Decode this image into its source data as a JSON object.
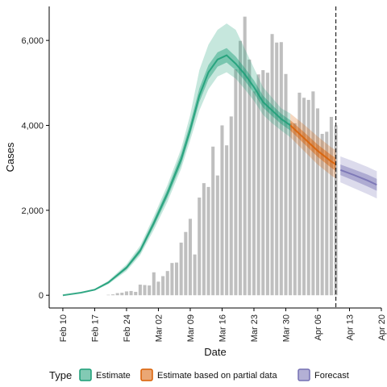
{
  "chart_data": {
    "type": "bar",
    "xlabel": "Date",
    "ylabel": "Cases",
    "x_ticks": [
      "Feb 10",
      "Feb 17",
      "Feb 24",
      "Mar 02",
      "Mar 09",
      "Mar 16",
      "Mar 23",
      "Mar 30",
      "Apr 06",
      "Apr 13",
      "Apr 20"
    ],
    "y_ticks": [
      {
        "value": 0,
        "label": "0"
      },
      {
        "value": 2000,
        "label": "2,000"
      },
      {
        "value": 4000,
        "label": "4,000"
      },
      {
        "value": 6000,
        "label": "6,000"
      }
    ],
    "xlim": [
      "2020-02-07",
      "2020-04-20"
    ],
    "ylim": [
      -300,
      6800
    ],
    "grid": false,
    "vline_date": "2020-04-10",
    "legend": {
      "position": "bottom",
      "title": "Type",
      "entries": [
        {
          "label": "Estimate",
          "color": "#1b9e77"
        },
        {
          "label": "Estimate based on partial data",
          "color": "#d95f02"
        },
        {
          "label": "Forecast",
          "color": "#7570b3"
        }
      ]
    },
    "colors": {
      "bars": "#bfbfbf",
      "estimate": "#1b9e77",
      "partial": "#d95f02",
      "forecast": "#7570b3"
    },
    "bars": [
      {
        "date": "2020-02-20",
        "value": 10
      },
      {
        "date": "2020-02-21",
        "value": 20
      },
      {
        "date": "2020-02-22",
        "value": 50
      },
      {
        "date": "2020-02-23",
        "value": 60
      },
      {
        "date": "2020-02-24",
        "value": 90
      },
      {
        "date": "2020-02-25",
        "value": 100
      },
      {
        "date": "2020-02-26",
        "value": 80
      },
      {
        "date": "2020-02-27",
        "value": 250
      },
      {
        "date": "2020-02-28",
        "value": 240
      },
      {
        "date": "2020-02-29",
        "value": 230
      },
      {
        "date": "2020-03-01",
        "value": 540
      },
      {
        "date": "2020-03-02",
        "value": 320
      },
      {
        "date": "2020-03-03",
        "value": 450
      },
      {
        "date": "2020-03-04",
        "value": 570
      },
      {
        "date": "2020-03-05",
        "value": 760
      },
      {
        "date": "2020-03-06",
        "value": 770
      },
      {
        "date": "2020-03-07",
        "value": 1240
      },
      {
        "date": "2020-03-08",
        "value": 1490
      },
      {
        "date": "2020-03-09",
        "value": 1800
      },
      {
        "date": "2020-03-10",
        "value": 960
      },
      {
        "date": "2020-03-11",
        "value": 2300
      },
      {
        "date": "2020-03-12",
        "value": 2640
      },
      {
        "date": "2020-03-13",
        "value": 2550
      },
      {
        "date": "2020-03-14",
        "value": 3500
      },
      {
        "date": "2020-03-15",
        "value": 2820
      },
      {
        "date": "2020-03-16",
        "value": 4000
      },
      {
        "date": "2020-03-17",
        "value": 3530
      },
      {
        "date": "2020-03-18",
        "value": 4210
      },
      {
        "date": "2020-03-19",
        "value": 5320
      },
      {
        "date": "2020-03-20",
        "value": 5990
      },
      {
        "date": "2020-03-21",
        "value": 6560
      },
      {
        "date": "2020-03-22",
        "value": 5550
      },
      {
        "date": "2020-03-23",
        "value": 4800
      },
      {
        "date": "2020-03-24",
        "value": 5200
      },
      {
        "date": "2020-03-25",
        "value": 5300
      },
      {
        "date": "2020-03-26",
        "value": 5240
      },
      {
        "date": "2020-03-27",
        "value": 6150
      },
      {
        "date": "2020-03-28",
        "value": 5950
      },
      {
        "date": "2020-03-29",
        "value": 5960
      },
      {
        "date": "2020-03-30",
        "value": 5210
      },
      {
        "date": "2020-03-31",
        "value": 4050
      },
      {
        "date": "2020-04-01",
        "value": 4050
      },
      {
        "date": "2020-04-02",
        "value": 4770
      },
      {
        "date": "2020-04-03",
        "value": 4650
      },
      {
        "date": "2020-04-04",
        "value": 4600
      },
      {
        "date": "2020-04-05",
        "value": 4800
      },
      {
        "date": "2020-04-06",
        "value": 4400
      },
      {
        "date": "2020-04-07",
        "value": 3800
      },
      {
        "date": "2020-04-08",
        "value": 3850
      },
      {
        "date": "2020-04-09",
        "value": 4200
      },
      {
        "date": "2020-04-10",
        "value": 4000
      }
    ],
    "series": [
      {
        "name": "Estimate",
        "color": "#1b9e77",
        "points": [
          {
            "date": "2020-02-10",
            "mid": 0,
            "lo50": 0,
            "hi50": 0,
            "lo90": 0,
            "hi90": 0
          },
          {
            "date": "2020-02-14",
            "mid": 60,
            "lo50": 55,
            "hi50": 65,
            "lo90": 50,
            "hi90": 70
          },
          {
            "date": "2020-02-17",
            "mid": 130,
            "lo50": 120,
            "hi50": 140,
            "lo90": 110,
            "hi90": 150
          },
          {
            "date": "2020-02-20",
            "mid": 300,
            "lo50": 280,
            "hi50": 320,
            "lo90": 260,
            "hi90": 340
          },
          {
            "date": "2020-02-24",
            "mid": 650,
            "lo50": 610,
            "hi50": 690,
            "lo90": 570,
            "hi90": 730
          },
          {
            "date": "2020-02-27",
            "mid": 1050,
            "lo50": 990,
            "hi50": 1110,
            "lo90": 940,
            "hi90": 1170
          },
          {
            "date": "2020-03-01",
            "mid": 1700,
            "lo50": 1620,
            "hi50": 1780,
            "lo90": 1540,
            "hi90": 1860
          },
          {
            "date": "2020-03-04",
            "mid": 2400,
            "lo50": 2300,
            "hi50": 2500,
            "lo90": 2200,
            "hi90": 2600
          },
          {
            "date": "2020-03-07",
            "mid": 3200,
            "lo50": 3080,
            "hi50": 3330,
            "lo90": 2980,
            "hi90": 3450
          },
          {
            "date": "2020-03-09",
            "mid": 3900,
            "lo50": 3780,
            "hi50": 4050,
            "lo90": 3650,
            "hi90": 4250
          },
          {
            "date": "2020-03-11",
            "mid": 4700,
            "lo50": 4550,
            "hi50": 4870,
            "lo90": 4350,
            "hi90": 5300
          },
          {
            "date": "2020-03-13",
            "mid": 5250,
            "lo50": 5080,
            "hi50": 5420,
            "lo90": 4850,
            "hi90": 5900
          },
          {
            "date": "2020-03-15",
            "mid": 5550,
            "lo50": 5380,
            "hi50": 5720,
            "lo90": 5150,
            "hi90": 6250
          },
          {
            "date": "2020-03-17",
            "mid": 5650,
            "lo50": 5480,
            "hi50": 5820,
            "lo90": 5250,
            "hi90": 6400
          },
          {
            "date": "2020-03-19",
            "mid": 5450,
            "lo50": 5300,
            "hi50": 5620,
            "lo90": 5100,
            "hi90": 6250
          },
          {
            "date": "2020-03-21",
            "mid": 5200,
            "lo50": 5050,
            "hi50": 5350,
            "lo90": 4850,
            "hi90": 5800
          },
          {
            "date": "2020-03-23",
            "mid": 4900,
            "lo50": 4760,
            "hi50": 5060,
            "lo90": 4580,
            "hi90": 5350
          },
          {
            "date": "2020-03-25",
            "mid": 4550,
            "lo50": 4420,
            "hi50": 4700,
            "lo90": 4250,
            "hi90": 4900
          },
          {
            "date": "2020-03-27",
            "mid": 4350,
            "lo50": 4220,
            "hi50": 4480,
            "lo90": 4050,
            "hi90": 4650
          },
          {
            "date": "2020-03-29",
            "mid": 4150,
            "lo50": 4030,
            "hi50": 4270,
            "lo90": 3880,
            "hi90": 4400
          },
          {
            "date": "2020-03-31",
            "mid": 4000,
            "lo50": 3880,
            "hi50": 4120,
            "lo90": 3720,
            "hi90": 4280
          }
        ]
      },
      {
        "name": "Estimate based on partial data",
        "color": "#d95f02",
        "points": [
          {
            "date": "2020-03-31",
            "mid": 4000,
            "lo50": 3880,
            "hi50": 4120,
            "lo90": 3720,
            "hi90": 4280
          },
          {
            "date": "2020-04-03",
            "mid": 3700,
            "lo50": 3570,
            "hi50": 3840,
            "lo90": 3400,
            "hi90": 4020
          },
          {
            "date": "2020-04-06",
            "mid": 3400,
            "lo50": 3260,
            "hi50": 3550,
            "lo90": 3080,
            "hi90": 3740
          },
          {
            "date": "2020-04-09",
            "mid": 3150,
            "lo50": 3000,
            "hi50": 3300,
            "lo90": 2820,
            "hi90": 3480
          },
          {
            "date": "2020-04-10",
            "mid": 3080,
            "lo50": 2930,
            "hi50": 3230,
            "lo90": 2750,
            "hi90": 3420
          }
        ]
      },
      {
        "name": "Forecast",
        "color": "#7570b3",
        "points": [
          {
            "date": "2020-04-11",
            "mid": 2950,
            "lo50": 2830,
            "hi50": 3080,
            "lo90": 2660,
            "hi90": 3270
          },
          {
            "date": "2020-04-14",
            "mid": 2830,
            "lo50": 2700,
            "hi50": 2960,
            "lo90": 2520,
            "hi90": 3150
          },
          {
            "date": "2020-04-17",
            "mid": 2700,
            "lo50": 2560,
            "hi50": 2840,
            "lo90": 2380,
            "hi90": 3020
          },
          {
            "date": "2020-04-19",
            "mid": 2600,
            "lo50": 2460,
            "hi50": 2740,
            "lo90": 2280,
            "hi90": 2920
          }
        ]
      }
    ]
  }
}
